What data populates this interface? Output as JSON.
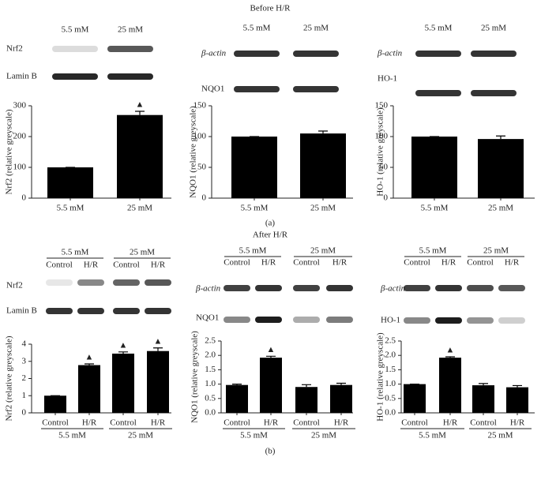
{
  "panels": [
    {
      "title": "Before H/R",
      "label": "(a)"
    },
    {
      "title": "After H/R",
      "label": "(b)"
    }
  ],
  "blots": [
    {
      "lanes": [
        "5.5 mM",
        "25 mM"
      ],
      "rows": [
        "Nrf2",
        "Lamin B"
      ]
    },
    {
      "lanes": [
        "5.5 mM",
        "25 mM"
      ],
      "rows": [
        "β-actin",
        "NQO1"
      ]
    },
    {
      "lanes": [
        "5.5 mM",
        "25 mM"
      ],
      "rows": [
        "β-actin",
        "HO-1"
      ]
    },
    {
      "groups": [
        "5.5 mM",
        "25 mM"
      ],
      "lanes": [
        "Control",
        "H/R",
        "Control",
        "H/R"
      ],
      "rows": [
        "Nrf2",
        "Lamin B"
      ]
    },
    {
      "groups": [
        "5.5 mM",
        "25 mM"
      ],
      "lanes": [
        "Control",
        "H/R",
        "Control",
        "H/R"
      ],
      "rows": [
        "β-actin",
        "NQO1"
      ]
    },
    {
      "groups": [
        "5.5 mM",
        "25 mM"
      ],
      "lanes": [
        "Control",
        "H/R",
        "Control",
        "H/R"
      ],
      "rows": [
        "β-actin",
        "HO-1"
      ]
    }
  ],
  "chart_data": [
    {
      "type": "bar",
      "y_label": "Nrf2 (relative greyscale)",
      "categories": [
        "5.5 mM",
        "25 mM"
      ],
      "values": [
        100,
        270
      ],
      "errors": [
        0,
        12
      ],
      "markers": [
        null,
        "▲"
      ],
      "color": "#000000",
      "ylim": [
        0,
        300
      ],
      "yticks": [
        0,
        100,
        200,
        300
      ]
    },
    {
      "type": "bar",
      "y_label": "NQO1 (relative greyscale)",
      "categories": [
        "5.5 mM",
        "25 mM"
      ],
      "values": [
        100,
        105
      ],
      "errors": [
        0,
        4
      ],
      "color": "#000000",
      "ylim": [
        0,
        150
      ],
      "yticks": [
        0,
        50,
        100,
        150
      ]
    },
    {
      "type": "bar",
      "y_label": "HO-1 (relative greyscale)",
      "categories": [
        "5.5 mM",
        "25 mM"
      ],
      "values": [
        100,
        96
      ],
      "errors": [
        0,
        5
      ],
      "color": "#000000",
      "ylim": [
        0,
        150
      ],
      "yticks": [
        0,
        50,
        100,
        150
      ]
    },
    {
      "type": "bar",
      "y_label": "Nrf2 (relative greyscale)",
      "categories": [
        "Control",
        "H/R",
        "Control",
        "H/R"
      ],
      "groups": [
        "5.5 mM",
        "25 mM"
      ],
      "values": [
        1,
        2.78,
        3.45,
        3.6
      ],
      "errors": [
        0,
        0.07,
        0.1,
        0.18
      ],
      "markers": [
        null,
        "▲",
        "▲",
        "▲"
      ],
      "color": "#000000",
      "ylim": [
        0,
        4
      ],
      "yticks": [
        0,
        1,
        2,
        3,
        4
      ]
    },
    {
      "type": "bar",
      "y_label": "NQO1 (relative greyscale)",
      "categories": [
        "Control",
        "H/R",
        "Control",
        "H/R"
      ],
      "groups": [
        "5.5 mM",
        "25 mM"
      ],
      "values": [
        0.97,
        1.92,
        0.9,
        0.97
      ],
      "errors": [
        0.03,
        0.05,
        0.08,
        0.06
      ],
      "markers": [
        null,
        "▲",
        null,
        null
      ],
      "color": "#000000",
      "ylim": [
        0,
        2.5
      ],
      "yticks": [
        {
          "value": 0,
          "label": "0.0"
        },
        0.5,
        {
          "value": 1,
          "label": "1.0"
        },
        1.5,
        {
          "value": 2,
          "label": "2.0"
        },
        2.5
      ]
    },
    {
      "type": "bar",
      "y_label": "HO-1 (relative greyscale)",
      "categories": [
        "Control",
        "H/R",
        "Control",
        "H/R"
      ],
      "groups": [
        "5.5 mM",
        "25 mM"
      ],
      "values": [
        1.0,
        1.92,
        0.96,
        0.89
      ],
      "errors": [
        0,
        0.03,
        0.06,
        0.06
      ],
      "markers": [
        null,
        "▲",
        null,
        null
      ],
      "color": "#000000",
      "ylim": [
        0,
        2.5
      ],
      "yticks": [
        {
          "value": 0,
          "label": "0.0"
        },
        0.5,
        {
          "value": 1,
          "label": "1.0"
        },
        1.5,
        {
          "value": 2,
          "label": "2.0"
        },
        2.5
      ]
    }
  ]
}
